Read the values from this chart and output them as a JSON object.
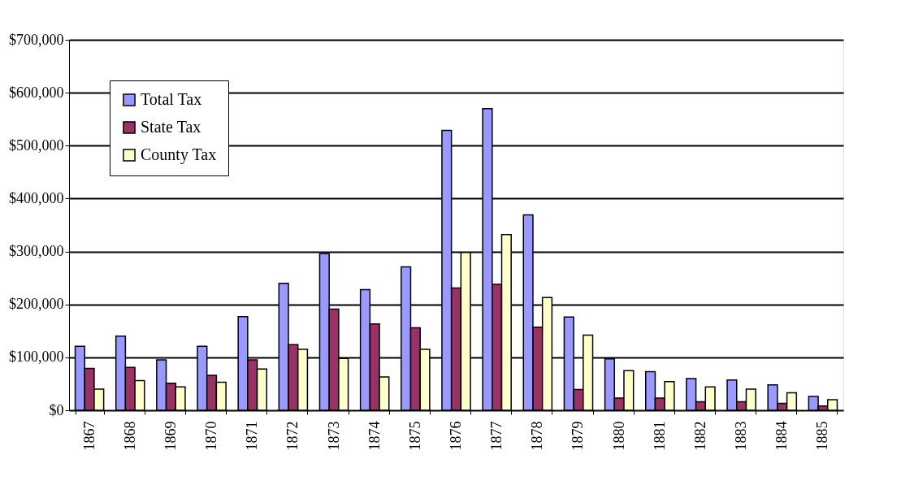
{
  "chart_data": {
    "type": "bar",
    "categories": [
      "1867",
      "1868",
      "1869",
      "1870",
      "1871",
      "1872",
      "1873",
      "1874",
      "1875",
      "1876",
      "1877",
      "1878",
      "1879",
      "1880",
      "1881",
      "1882",
      "1883",
      "1884",
      "1885"
    ],
    "series": [
      {
        "name": "Total Tax",
        "color": "#9999ff",
        "values": [
          121000,
          140000,
          95000,
          121000,
          177000,
          240000,
          296000,
          228000,
          271000,
          529000,
          570000,
          369000,
          176000,
          97000,
          73000,
          60000,
          57000,
          48000,
          26000
        ]
      },
      {
        "name": "State Tax",
        "color": "#993366",
        "values": [
          79000,
          81000,
          51000,
          66000,
          95000,
          124000,
          191000,
          163000,
          156000,
          231000,
          238000,
          157000,
          39000,
          23000,
          23000,
          16000,
          16000,
          13000,
          8000
        ]
      },
      {
        "name": "County Tax",
        "color": "#ffffcc",
        "values": [
          40000,
          56000,
          44000,
          53000,
          78000,
          115000,
          98000,
          63000,
          115000,
          298000,
          332000,
          213000,
          142000,
          75000,
          54000,
          44000,
          40000,
          33000,
          20000
        ]
      }
    ],
    "ylim": [
      0,
      700000
    ],
    "yticks": [
      {
        "value": 0,
        "label": "$0"
      },
      {
        "value": 100000,
        "label": "$100,000"
      },
      {
        "value": 200000,
        "label": "$200,000"
      },
      {
        "value": 300000,
        "label": "$300,000"
      },
      {
        "value": 400000,
        "label": "$400,000"
      },
      {
        "value": 500000,
        "label": "$500,000"
      },
      {
        "value": 600000,
        "label": "$600,000"
      },
      {
        "value": 700000,
        "label": "$700,000"
      }
    ],
    "grid": "y",
    "legend": "top left"
  }
}
